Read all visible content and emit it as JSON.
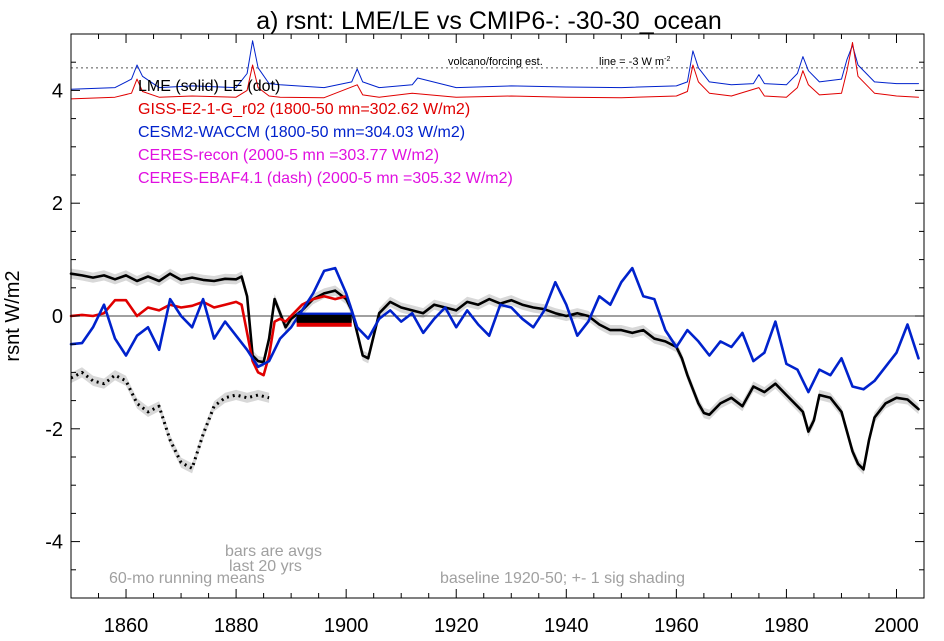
{
  "colors": {
    "lme": "#000000",
    "giss": "#e00000",
    "cesm": "#0022cc",
    "ceres": "#e010e0",
    "note": "#a0a0a0",
    "shade": "#d8d8d8"
  },
  "chart_data": {
    "type": "line",
    "title": "a) rsnt: LME/LE vs CMIP6-: -30-30_ocean",
    "ylabel": "rsnt W/m2",
    "xlabel": "",
    "xlim": [
      1850,
      2005
    ],
    "ylim": [
      -5,
      5
    ],
    "grid": false,
    "x_ticks": [
      1860,
      1880,
      1900,
      1920,
      1940,
      1960,
      1980,
      2000
    ],
    "y_ticks": [
      -4,
      -2,
      0,
      2,
      4
    ],
    "legend": [
      {
        "text": "LME (solid)   LE (dot)",
        "color": "#000000"
      },
      {
        "text": "GISS-E2-1-G_r02 (1800-50 mn=302.62 W/m2)",
        "color": "#e00000"
      },
      {
        "text": "CESM2-WACCM (1800-50 mn=304.03 W/m2)",
        "color": "#0022cc"
      },
      {
        "text": "CERES-recon (2000-5 mn =303.77 W/m2)",
        "color": "#e010e0"
      },
      {
        "text": "CERES-EBAF4.1 (dash) (2000-5 mn =305.32 W/m2)",
        "color": "#e010e0"
      }
    ],
    "annotations": {
      "volcano": "volcano/forcing est.",
      "line_note": "line = -3 W m",
      "line_note_sup": "-2",
      "bars_note_1": "bars are avgs",
      "bars_note_2": "last 20 yrs",
      "running_means": "60-mo running means",
      "baseline": "baseline 1920-50; +- 1 sig shading"
    },
    "reference_line": {
      "y": 4.4,
      "style": "dotted"
    },
    "bars": [
      {
        "series": "GISS-E2-1-G_r02",
        "x0": 1891,
        "x1": 1901,
        "y": -0.12
      },
      {
        "series": "CESM2-WACCM",
        "x0": 1891,
        "x1": 1901,
        "y": -0.01
      },
      {
        "series": "LME",
        "x0": 1891,
        "x1": 1901,
        "y": -0.05
      }
    ],
    "series": [
      {
        "name": "LME",
        "style": "solid",
        "color": "#000000",
        "shaded": true,
        "x": [
          1850,
          1852,
          1854,
          1856,
          1858,
          1860,
          1862,
          1864,
          1866,
          1868,
          1870,
          1872,
          1874,
          1876,
          1878,
          1880,
          1881,
          1882,
          1883,
          1884,
          1885,
          1886,
          1887,
          1888,
          1889,
          1890,
          1892,
          1894,
          1896,
          1898,
          1900,
          1901,
          1902,
          1903,
          1904,
          1906,
          1908,
          1910,
          1912,
          1914,
          1916,
          1918,
          1920,
          1922,
          1924,
          1926,
          1928,
          1930,
          1932,
          1934,
          1936,
          1938,
          1940,
          1942,
          1944,
          1946,
          1948,
          1950,
          1952,
          1954,
          1956,
          1958,
          1960,
          1961,
          1962,
          1963,
          1964,
          1965,
          1966,
          1968,
          1970,
          1972,
          1974,
          1976,
          1978,
          1980,
          1982,
          1983,
          1984,
          1985,
          1986,
          1988,
          1990,
          1991,
          1992,
          1993,
          1994,
          1995,
          1996,
          1998,
          2000,
          2002,
          2004
        ],
        "y": [
          0.75,
          0.72,
          0.68,
          0.72,
          0.65,
          0.72,
          0.62,
          0.7,
          0.62,
          0.75,
          0.64,
          0.68,
          0.64,
          0.62,
          0.66,
          0.65,
          0.7,
          0.35,
          -0.7,
          -0.8,
          -0.82,
          -0.4,
          0.3,
          0.05,
          -0.2,
          -0.05,
          0.1,
          0.3,
          0.4,
          0.45,
          0.3,
          0.1,
          -0.3,
          -0.7,
          -0.75,
          0.05,
          0.25,
          0.15,
          0.1,
          0.05,
          0.2,
          0.15,
          0.1,
          0.25,
          0.2,
          0.3,
          0.22,
          0.28,
          0.2,
          0.15,
          0.12,
          0.05,
          0.0,
          0.05,
          0.0,
          -0.15,
          -0.25,
          -0.25,
          -0.3,
          -0.25,
          -0.4,
          -0.45,
          -0.55,
          -0.75,
          -1.05,
          -1.3,
          -1.55,
          -1.72,
          -1.75,
          -1.55,
          -1.45,
          -1.6,
          -1.25,
          -1.35,
          -1.2,
          -1.4,
          -1.6,
          -1.7,
          -2.05,
          -1.85,
          -1.4,
          -1.45,
          -1.7,
          -2.05,
          -2.4,
          -2.62,
          -2.72,
          -2.2,
          -1.8,
          -1.55,
          -1.45,
          -1.48,
          -1.65
        ]
      },
      {
        "name": "LE",
        "style": "dotted",
        "color": "#000000",
        "shaded": true,
        "x": [
          1850,
          1852,
          1854,
          1856,
          1858,
          1860,
          1862,
          1864,
          1866,
          1868,
          1870,
          1872,
          1874,
          1876,
          1878,
          1880,
          1882,
          1884,
          1886
        ],
        "y": [
          -1.1,
          -1.0,
          -1.15,
          -1.2,
          -1.05,
          -1.15,
          -1.55,
          -1.7,
          -1.6,
          -2.2,
          -2.6,
          -2.7,
          -2.1,
          -1.6,
          -1.45,
          -1.4,
          -1.45,
          -1.4,
          -1.45
        ]
      },
      {
        "name": "GISS-E2-1-G_r02",
        "style": "solid",
        "color": "#e00000",
        "shaded": false,
        "x": [
          1850,
          1852,
          1854,
          1856,
          1858,
          1860,
          1862,
          1864,
          1866,
          1868,
          1870,
          1872,
          1874,
          1876,
          1878,
          1880,
          1881,
          1882,
          1883,
          1884,
          1885,
          1886,
          1887,
          1888,
          1889,
          1890,
          1892,
          1894,
          1896,
          1898,
          1900
        ],
        "y": [
          0.0,
          0.02,
          0.0,
          0.05,
          0.28,
          0.28,
          0.0,
          0.15,
          0.1,
          0.2,
          0.15,
          0.18,
          0.25,
          0.15,
          0.2,
          0.25,
          0.2,
          -0.3,
          -0.8,
          -1.0,
          -1.05,
          -0.7,
          -0.1,
          -0.05,
          -0.1,
          0.0,
          0.2,
          0.3,
          0.35,
          0.3,
          0.35
        ]
      },
      {
        "name": "CESM2-WACCM",
        "style": "solid",
        "color": "#0022cc",
        "shaded": false,
        "x": [
          1850,
          1852,
          1854,
          1856,
          1858,
          1860,
          1862,
          1864,
          1866,
          1868,
          1870,
          1872,
          1874,
          1876,
          1878,
          1880,
          1882,
          1884,
          1886,
          1888,
          1890,
          1892,
          1894,
          1896,
          1898,
          1900,
          1902,
          1904,
          1906,
          1908,
          1910,
          1912,
          1914,
          1916,
          1918,
          1920,
          1922,
          1924,
          1926,
          1928,
          1930,
          1932,
          1934,
          1936,
          1938,
          1940,
          1942,
          1944,
          1946,
          1948,
          1950,
          1952,
          1954,
          1956,
          1958,
          1960,
          1962,
          1964,
          1966,
          1968,
          1970,
          1972,
          1974,
          1976,
          1978,
          1980,
          1982,
          1984,
          1986,
          1988,
          1990,
          1992,
          1994,
          1996,
          1998,
          2000,
          2002,
          2004
        ],
        "y": [
          -0.5,
          -0.48,
          -0.2,
          0.2,
          -0.4,
          -0.7,
          -0.35,
          -0.2,
          -0.6,
          0.3,
          0.0,
          -0.2,
          0.3,
          -0.4,
          -0.1,
          -0.35,
          -0.6,
          -0.9,
          -0.8,
          -0.4,
          -0.2,
          0.1,
          0.4,
          0.8,
          0.85,
          0.4,
          -0.2,
          -0.4,
          -0.05,
          0.1,
          -0.1,
          0.05,
          -0.3,
          -0.05,
          0.15,
          -0.2,
          0.1,
          -0.15,
          -0.35,
          0.2,
          0.15,
          -0.05,
          -0.2,
          0.1,
          0.6,
          0.2,
          -0.35,
          -0.1,
          0.35,
          0.2,
          0.6,
          0.85,
          0.35,
          0.3,
          -0.25,
          -0.55,
          -0.25,
          -0.45,
          -0.7,
          -0.45,
          -0.55,
          -0.3,
          -0.8,
          -0.65,
          -0.1,
          -0.85,
          -0.95,
          -1.35,
          -0.95,
          -1.05,
          -0.75,
          -1.25,
          -1.3,
          -1.15,
          -0.9,
          -0.65,
          -0.15,
          -0.75
        ]
      },
      {
        "name": "LME volcanic forcing",
        "style": "solid",
        "color": "#0022cc",
        "shaded": false,
        "x": [
          1850,
          1858,
          1861,
          1862,
          1863,
          1866,
          1872,
          1880,
          1882,
          1883,
          1884,
          1886,
          1888,
          1896,
          1901,
          1902,
          1903,
          1906,
          1912,
          1913,
          1920,
          1930,
          1940,
          1950,
          1960,
          1962,
          1963,
          1964,
          1966,
          1970,
          1974,
          1975,
          1976,
          1980,
          1982,
          1983,
          1984,
          1986,
          1990,
          1991,
          1992,
          1993,
          1996,
          2000,
          2004
        ],
        "y": [
          4.02,
          4.05,
          4.2,
          4.45,
          4.25,
          4.05,
          4.08,
          4.05,
          4.3,
          4.88,
          4.4,
          4.12,
          4.1,
          4.05,
          4.15,
          4.38,
          4.15,
          4.05,
          4.1,
          4.22,
          4.05,
          4.08,
          4.06,
          4.05,
          4.08,
          4.15,
          4.7,
          4.4,
          4.15,
          4.1,
          4.12,
          4.28,
          4.12,
          4.1,
          4.3,
          4.6,
          4.35,
          4.15,
          4.2,
          4.55,
          4.8,
          4.45,
          4.15,
          4.12,
          4.12
        ]
      },
      {
        "name": "GISS volcanic forcing",
        "style": "solid",
        "color": "#e00000",
        "shaded": false,
        "x": [
          1850,
          1858,
          1861,
          1862,
          1863,
          1866,
          1872,
          1880,
          1882,
          1883,
          1884,
          1886,
          1888,
          1896,
          1902,
          1903,
          1906,
          1912,
          1920,
          1930,
          1940,
          1950,
          1960,
          1962,
          1963,
          1964,
          1966,
          1970,
          1975,
          1976,
          1980,
          1982,
          1983,
          1984,
          1986,
          1990,
          1991,
          1992,
          1993,
          1996,
          2000,
          2004
        ],
        "y": [
          3.85,
          3.88,
          3.95,
          4.2,
          3.98,
          3.88,
          3.9,
          3.88,
          4.0,
          4.45,
          4.05,
          3.9,
          3.88,
          3.87,
          4.1,
          3.92,
          3.88,
          3.95,
          3.88,
          3.9,
          3.88,
          3.87,
          3.9,
          3.98,
          4.45,
          4.15,
          3.95,
          3.9,
          4.05,
          3.9,
          3.88,
          4.05,
          4.35,
          4.1,
          3.92,
          3.95,
          4.35,
          4.85,
          4.25,
          3.95,
          3.9,
          3.88
        ]
      }
    ]
  }
}
